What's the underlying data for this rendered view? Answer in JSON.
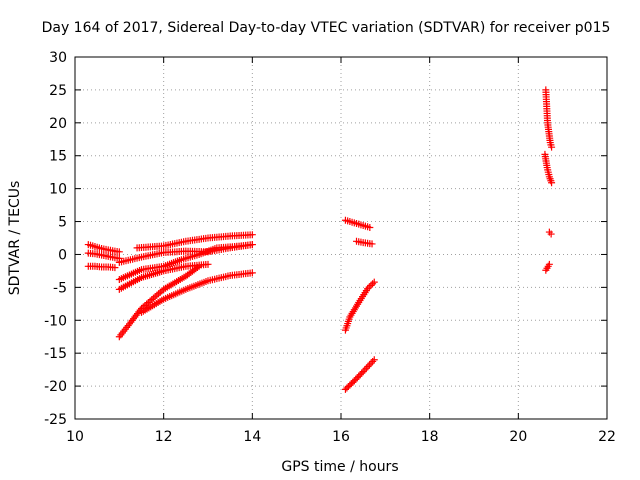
{
  "chart_data": {
    "type": "scatter",
    "title": "Day 164 of 2017, Sidereal Day-to-day VTEC variation (SDTVAR) for receiver p015",
    "xlabel": "GPS time / hours",
    "ylabel": "SDTVAR / TECUs",
    "xlim": [
      10,
      22
    ],
    "ylim": [
      -25,
      30
    ],
    "xticks": [
      10,
      12,
      14,
      16,
      18,
      20,
      22
    ],
    "yticks": [
      -25,
      -20,
      -15,
      -10,
      -5,
      0,
      5,
      10,
      15,
      20,
      25,
      30
    ],
    "grid": true,
    "marker": "plus",
    "color": "#ff0000",
    "series": [
      {
        "x": [
          10.3,
          10.45,
          10.6,
          10.75,
          10.9,
          11.0
        ],
        "y": [
          1.5,
          1.2,
          0.9,
          0.7,
          0.5,
          0.4
        ]
      },
      {
        "x": [
          10.3,
          10.45,
          10.6,
          10.75,
          10.9,
          11.0
        ],
        "y": [
          0.2,
          0.1,
          -0.1,
          -0.3,
          -0.5,
          -0.6
        ]
      },
      {
        "x": [
          10.3,
          10.45,
          10.6,
          10.75,
          10.9
        ],
        "y": [
          -1.8,
          -1.8,
          -1.9,
          -1.9,
          -2.0
        ]
      },
      {
        "x": [
          11.0,
          11.5,
          12.0,
          12.5,
          13.0,
          13.5,
          14.0
        ],
        "y": [
          -1.2,
          -0.4,
          0.3,
          0.5,
          0.4,
          1.0,
          1.5
        ]
      },
      {
        "x": [
          11.4,
          12.0,
          12.5,
          13.0,
          13.5,
          14.0
        ],
        "y": [
          1.0,
          1.3,
          2.0,
          2.5,
          2.8,
          3.0
        ]
      },
      {
        "x": [
          11.0,
          11.5,
          12.0,
          12.4,
          12.8,
          13.2,
          13.6,
          14.0
        ],
        "y": [
          -3.8,
          -2.3,
          -1.8,
          -0.8,
          0.0,
          1.0,
          1.2,
          1.5
        ]
      },
      {
        "x": [
          11.0,
          11.5,
          12.0,
          12.5,
          13.0
        ],
        "y": [
          -5.3,
          -3.5,
          -2.5,
          -1.8,
          -1.5
        ]
      },
      {
        "x": [
          11.0,
          11.2,
          11.5,
          12.0,
          12.5,
          12.8
        ],
        "y": [
          -12.5,
          -10.8,
          -8.2,
          -5.3,
          -3.3,
          -1.8
        ]
      },
      {
        "x": [
          11.5,
          12.0,
          12.5,
          13.0,
          13.5,
          14.0
        ],
        "y": [
          -8.8,
          -6.8,
          -5.3,
          -4.0,
          -3.2,
          -2.8
        ]
      },
      {
        "x": [
          16.1,
          16.3,
          16.5,
          16.65
        ],
        "y": [
          5.2,
          4.8,
          4.4,
          4.1
        ]
      },
      {
        "x": [
          16.35,
          16.5,
          16.7
        ],
        "y": [
          2.0,
          1.8,
          1.6
        ]
      },
      {
        "x": [
          16.1,
          16.2,
          16.4,
          16.6,
          16.75
        ],
        "y": [
          -11.5,
          -9.5,
          -7.3,
          -5.2,
          -4.2
        ]
      },
      {
        "x": [
          16.1,
          16.3,
          16.5,
          16.75
        ],
        "y": [
          -20.5,
          -19.2,
          -17.8,
          -16.0
        ]
      },
      {
        "x": [
          20.62,
          20.64,
          20.66,
          20.7,
          20.72,
          20.75
        ],
        "y": [
          25.0,
          22.5,
          20.0,
          18.0,
          17.0,
          16.3
        ]
      },
      {
        "x": [
          20.6,
          20.65,
          20.7,
          20.75
        ],
        "y": [
          15.2,
          13.2,
          11.8,
          10.9
        ]
      },
      {
        "x": [
          20.7,
          20.74
        ],
        "y": [
          3.4,
          3.1
        ]
      },
      {
        "x": [
          20.62,
          20.7
        ],
        "y": [
          -2.4,
          -1.5
        ]
      }
    ]
  }
}
